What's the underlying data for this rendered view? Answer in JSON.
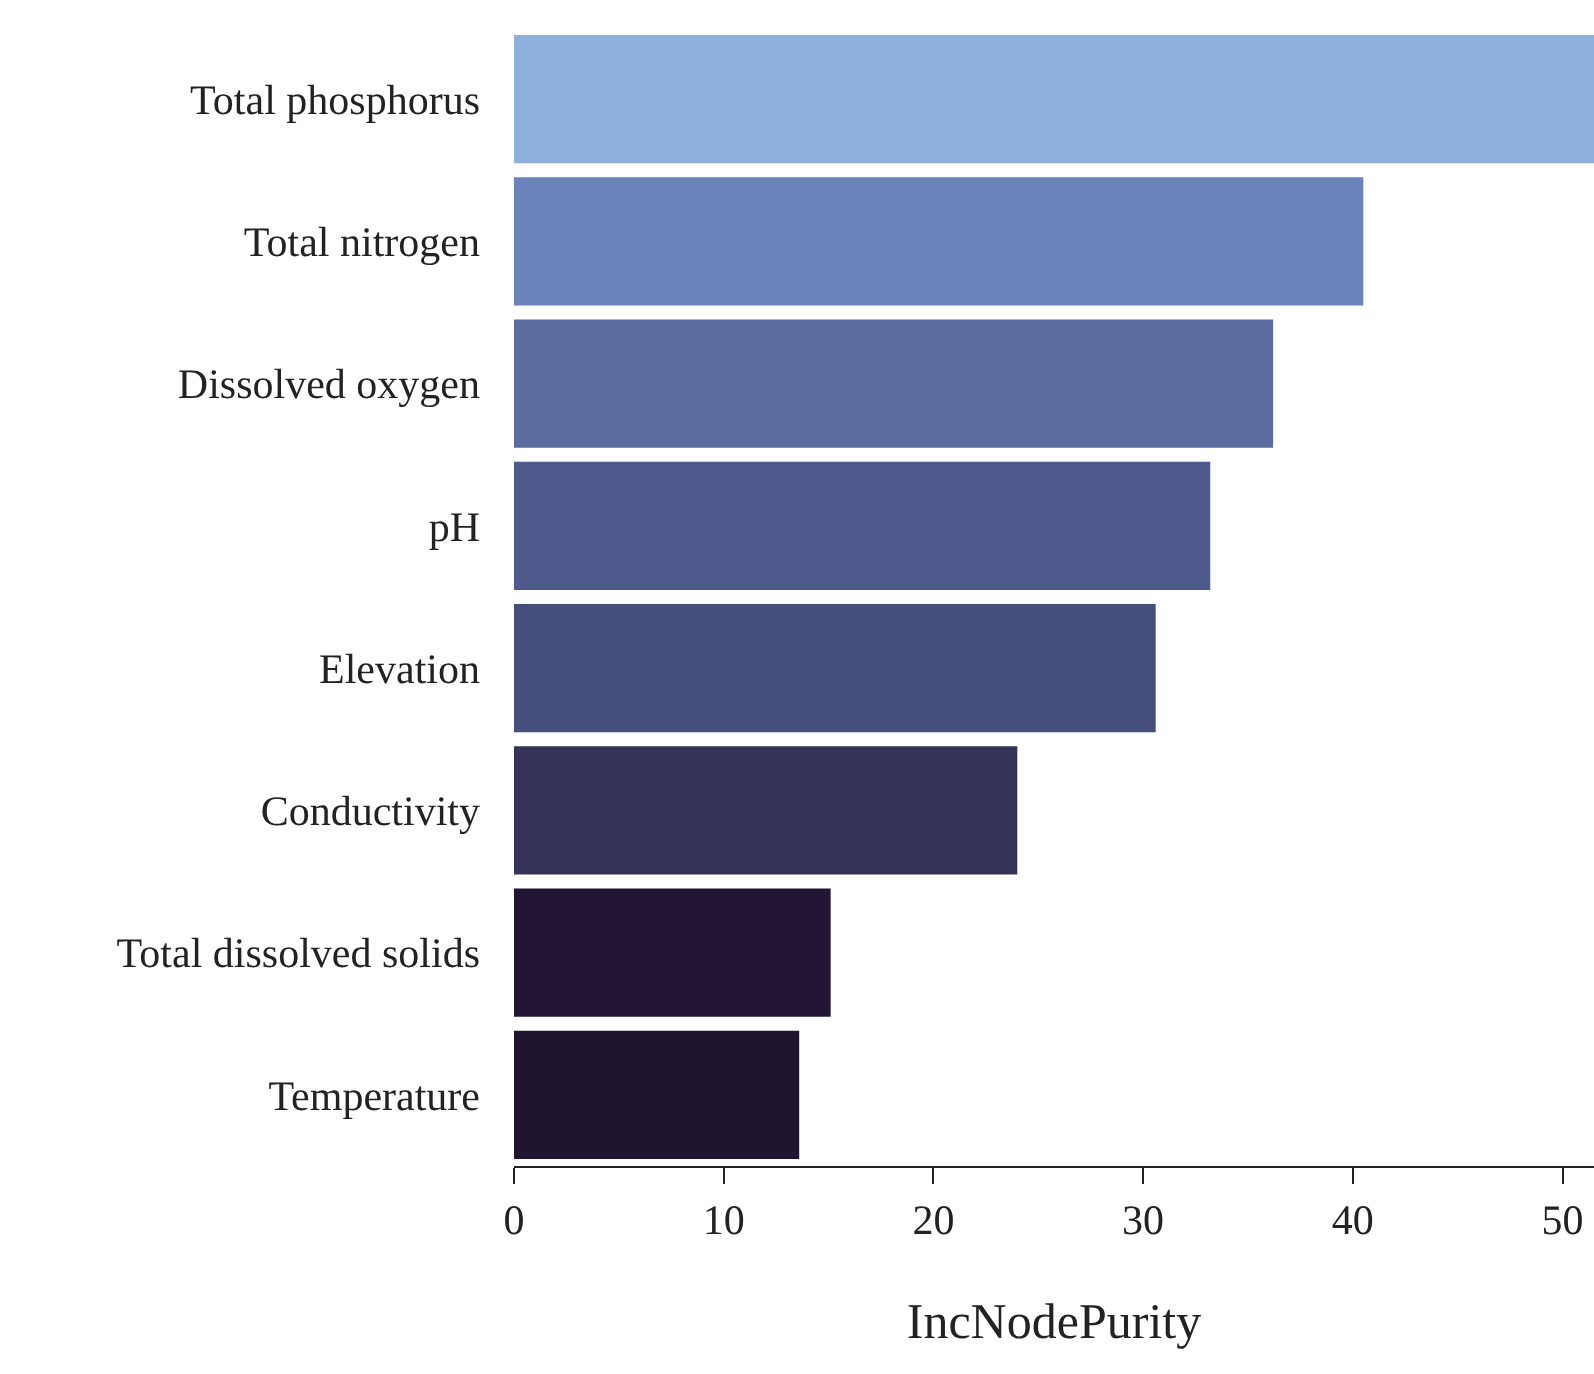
{
  "chart_data": {
    "type": "bar",
    "orientation": "horizontal",
    "xlabel": "IncNodePurity",
    "categories": [
      "Total phosphorus",
      "Total nitrogen",
      "Dissolved oxygen",
      "pH",
      "Elevation",
      "Conductivity",
      "Total dissolved solids",
      "Temperature"
    ],
    "values": [
      51.5,
      40.5,
      36.2,
      33.2,
      30.6,
      24.0,
      15.1,
      13.6
    ],
    "colors": [
      "#8eb1dc",
      "#6a84bb",
      "#5a6c9b",
      "#4e5a8a",
      "#464f7c",
      "#353257",
      "#231634",
      "#1f1530"
    ],
    "xlim": [
      0,
      51.5
    ],
    "xticks": [
      0,
      10,
      20,
      30,
      40,
      50
    ],
    "grid": false
  }
}
